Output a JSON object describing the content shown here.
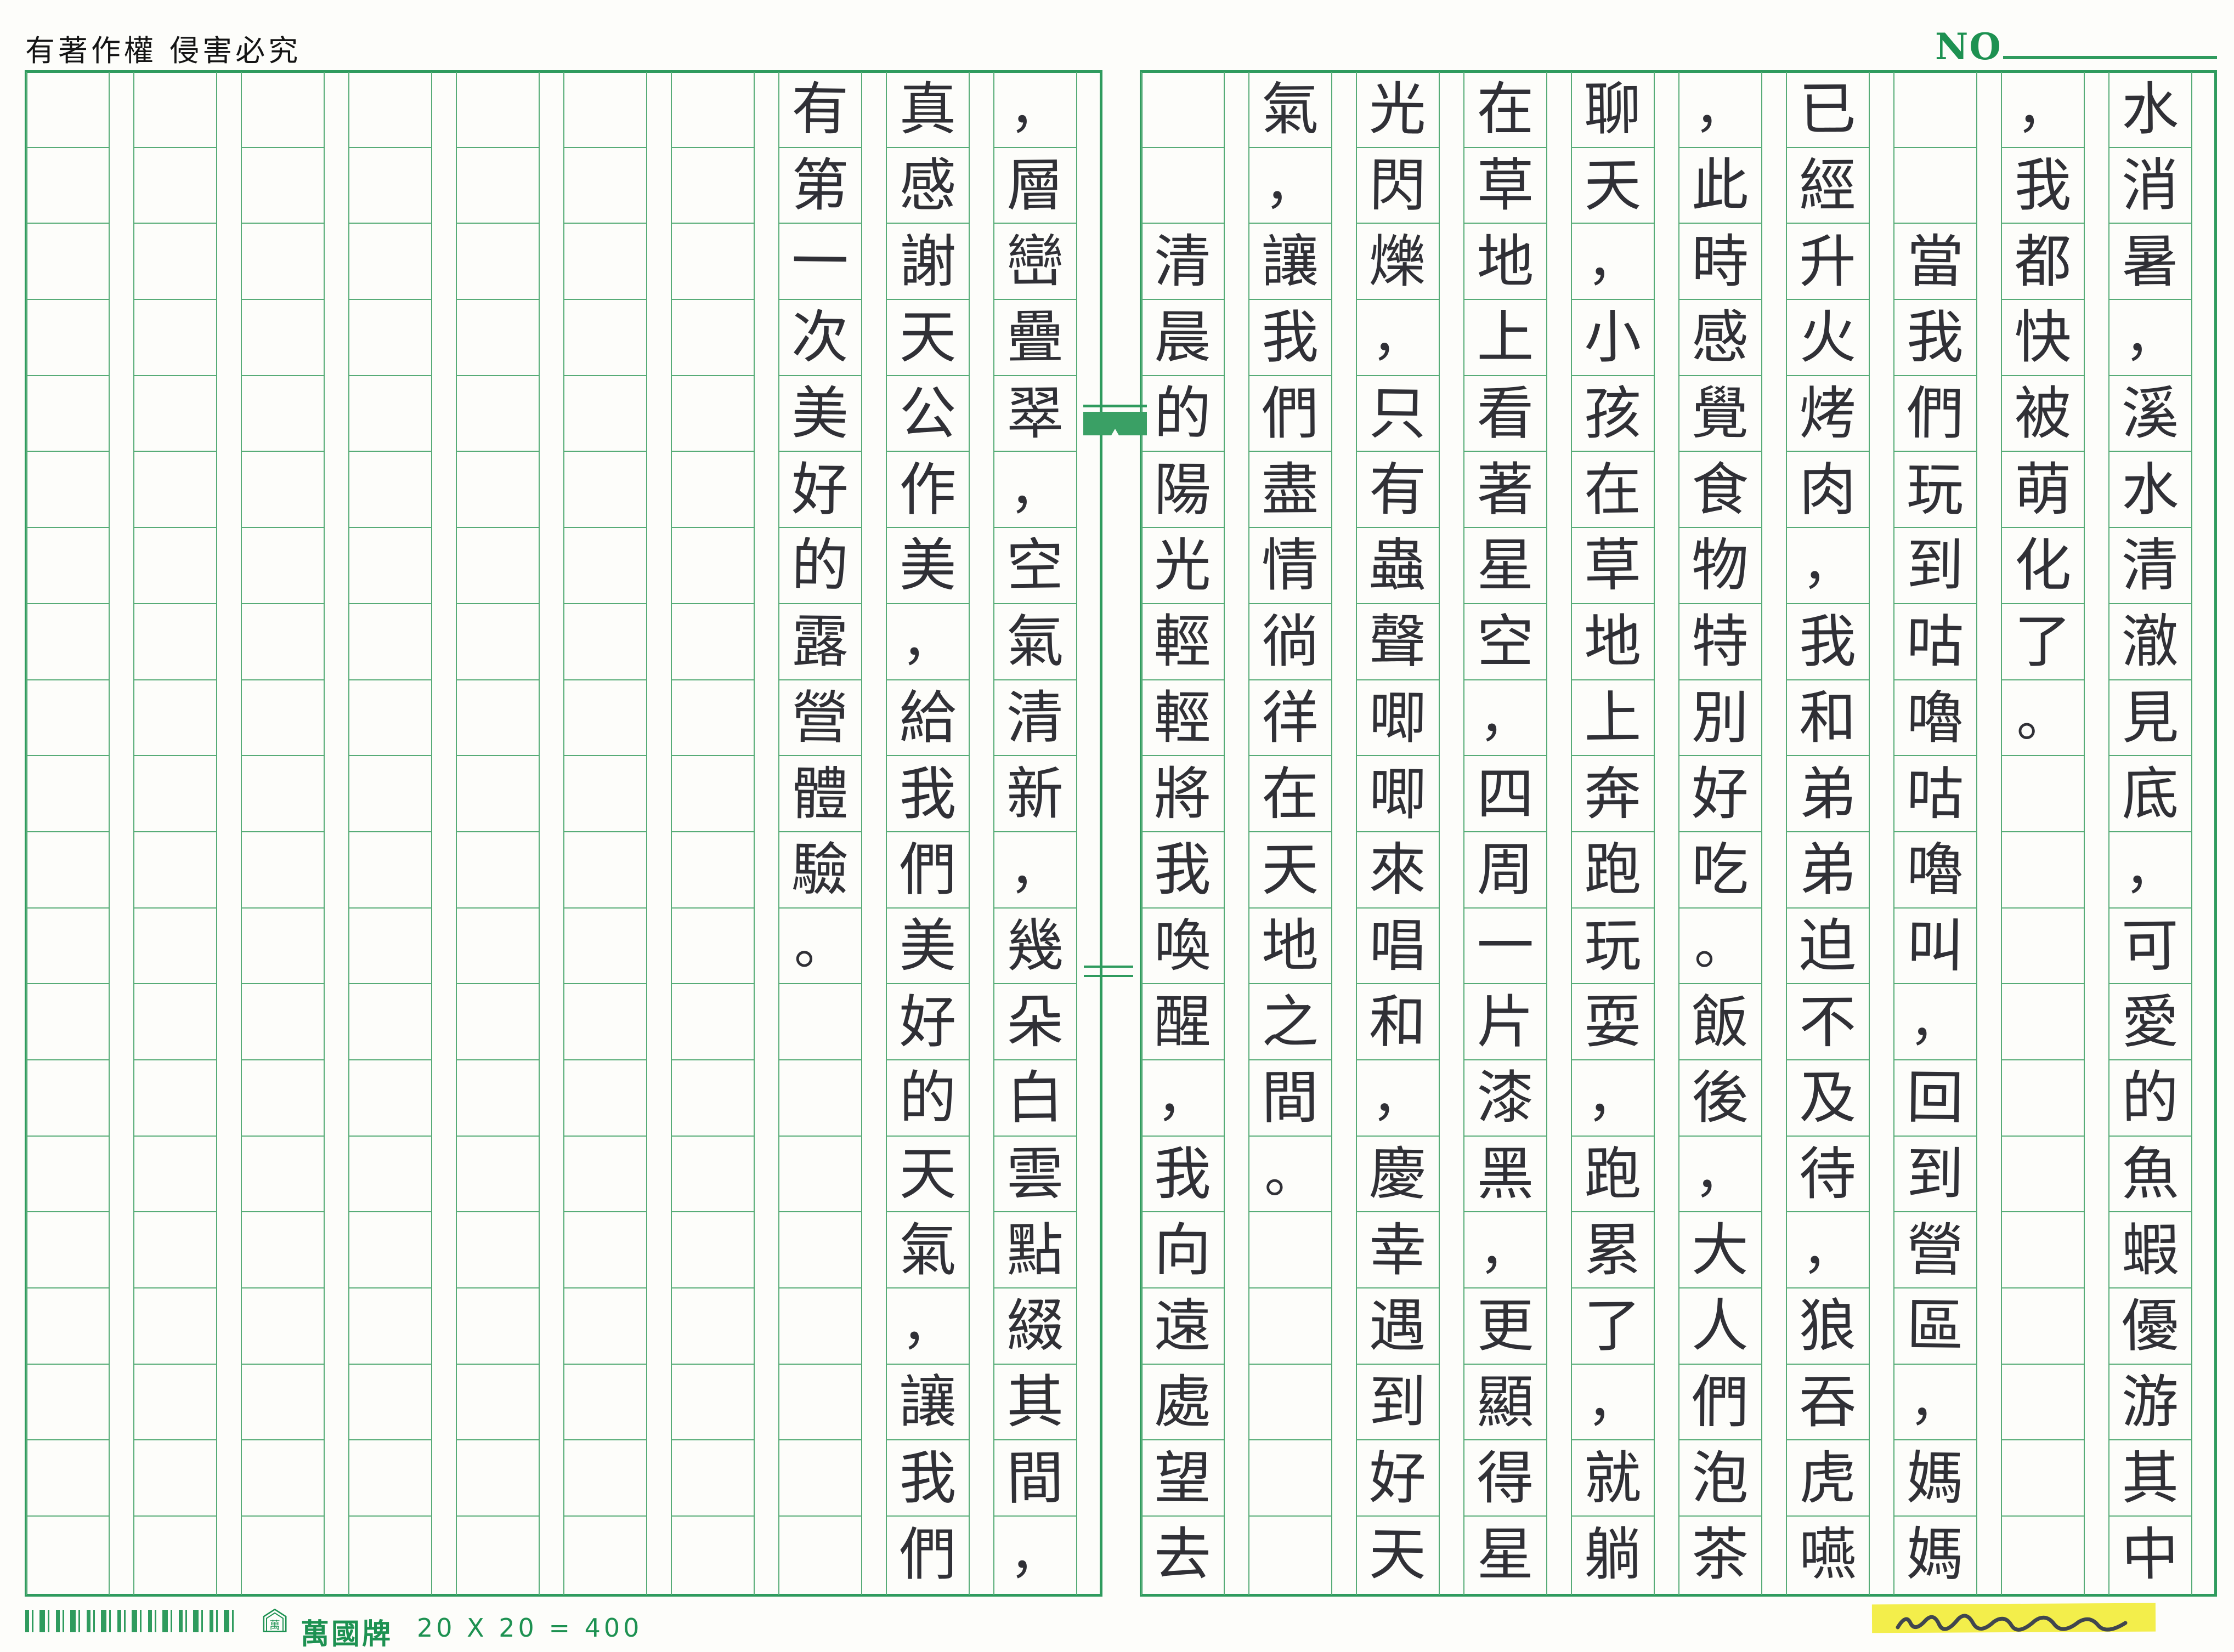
{
  "header": {
    "copyright_notice": "有著作權 侵害必究",
    "no_label": "NO"
  },
  "footer": {
    "brand": "萬國牌",
    "brand_logo_char": "萬",
    "paper_spec": "20 X 20 = 400"
  },
  "paper": {
    "rows_per_column": 20,
    "columns_total": 20,
    "grid_line_color": "#57ac77",
    "frame_color": "#2f9b5e",
    "ink_color": "#303036",
    "green_text_color": "#1d9151",
    "highlight_color": "#f3ee4b"
  },
  "manuscript": {
    "reading_order": "vertical columns, right to left",
    "columns_right_to_left": [
      {
        "indent": 0,
        "text": "水消暑，溪水清澈見底，可愛的魚蝦優游其中"
      },
      {
        "indent": 0,
        "text": "，我都快被萌化了。"
      },
      {
        "indent": 2,
        "text": "當我們玩到咕嚕咕嚕叫，回到營區，媽媽"
      },
      {
        "indent": 0,
        "text": "已經升火烤肉，我和弟弟迫不及待，狼吞虎嚥"
      },
      {
        "indent": 0,
        "text": "，此時感覺食物特別好吃。飯後，大人們泡茶"
      },
      {
        "indent": 0,
        "text": "聊天，小孩在草地上奔跑玩耍，跑累了，就躺"
      },
      {
        "indent": 0,
        "text": "在草地上看著星空，四周一片漆黑，更顯得星"
      },
      {
        "indent": 0,
        "text": "光閃爍，只有蟲聲唧唧來唱和，慶幸遇到好天"
      },
      {
        "indent": 0,
        "text": "氣，讓我們盡情徜徉在天地之間。"
      },
      {
        "indent": 2,
        "text": "清晨的陽光輕輕將我喚醒，我向遠處望去"
      },
      {
        "indent": 0,
        "text": "，層巒疊翠，空氣清新，幾朵白雲點綴其間，"
      },
      {
        "indent": 0,
        "text": "真感謝天公作美，給我們美好的天氣，讓我們"
      },
      {
        "indent": 0,
        "text": "有第一次美好的露營體驗。"
      },
      {
        "indent": 0,
        "text": ""
      },
      {
        "indent": 0,
        "text": ""
      },
      {
        "indent": 0,
        "text": ""
      },
      {
        "indent": 0,
        "text": ""
      },
      {
        "indent": 0,
        "text": ""
      },
      {
        "indent": 0,
        "text": ""
      },
      {
        "indent": 0,
        "text": ""
      }
    ]
  }
}
